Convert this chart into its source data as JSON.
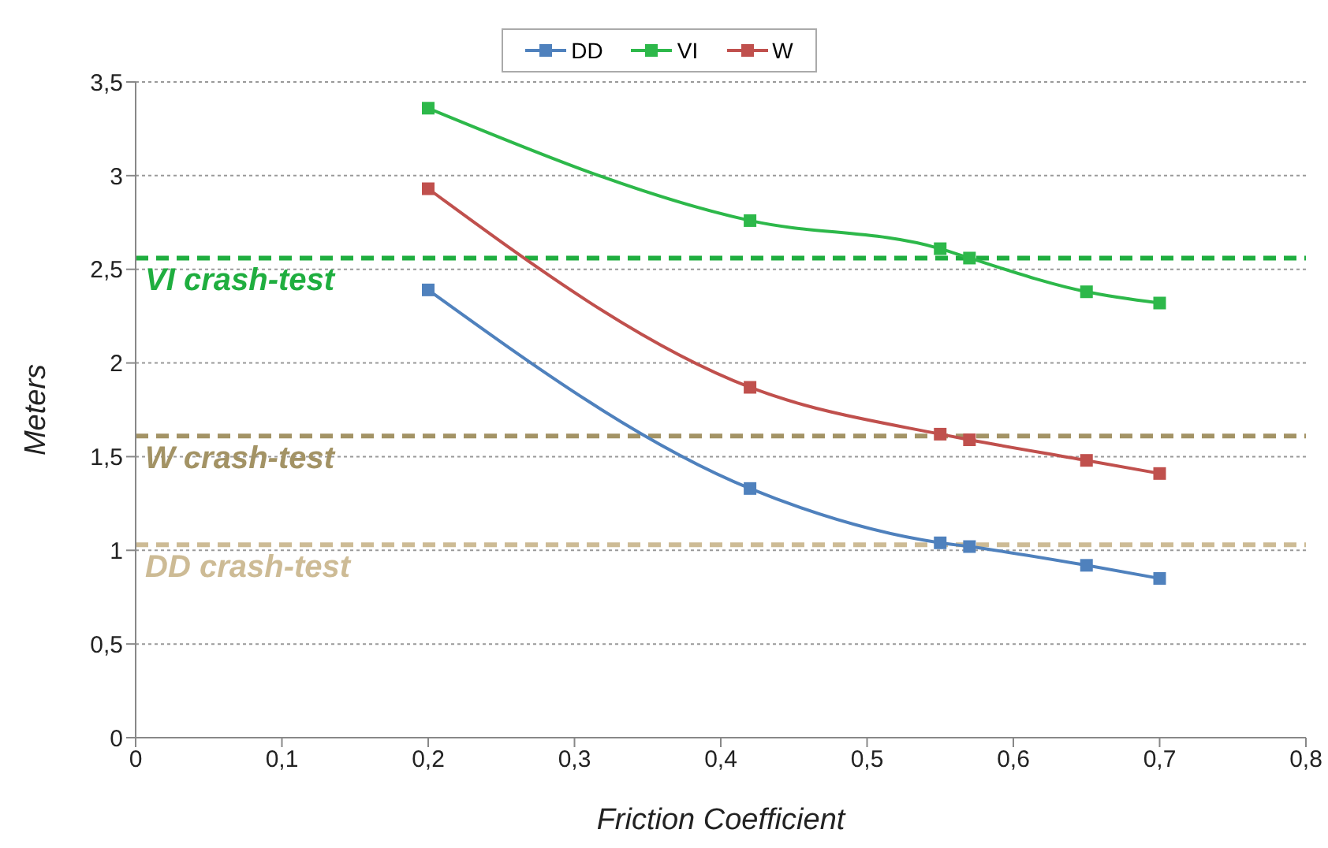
{
  "chart_data": {
    "type": "line",
    "xlabel": "Friction Coefficient",
    "ylabel": "Meters",
    "x": [
      0.2,
      0.42,
      0.55,
      0.57,
      0.65,
      0.7
    ],
    "series": [
      {
        "name": "DD",
        "color": "#4f81bd",
        "values": [
          2.39,
          1.33,
          1.04,
          1.02,
          0.92,
          0.85
        ]
      },
      {
        "name": "W",
        "color": "#c0504d",
        "values": [
          2.93,
          1.87,
          1.62,
          1.59,
          1.48,
          1.41
        ]
      },
      {
        "name": "VI",
        "color": "#2db84a",
        "values": [
          3.36,
          2.76,
          2.61,
          2.56,
          2.38,
          2.32
        ]
      }
    ],
    "xlim": [
      0,
      0.8
    ],
    "xticks": [
      0,
      {
        "value": 0.1,
        "label": "0,1"
      },
      {
        "value": 0.2,
        "label": "0,2"
      },
      {
        "value": 0.3,
        "label": "0,3"
      },
      {
        "value": 0.4,
        "label": "0,4"
      },
      {
        "value": 0.5,
        "label": "0,5"
      },
      {
        "value": 0.6,
        "label": "0,6"
      },
      {
        "value": 0.7,
        "label": "0,7"
      },
      {
        "value": 0.8,
        "label": "0,8"
      }
    ],
    "ylim": [
      0,
      3.5
    ],
    "yticks": [
      0,
      {
        "value": 0.5,
        "label": "0,5"
      },
      1,
      {
        "value": 1.5,
        "label": "1,5"
      },
      2,
      {
        "value": 2.5,
        "label": "2,5"
      },
      3,
      {
        "value": 3.5,
        "label": "3,5"
      }
    ],
    "ref_lines": [
      {
        "axis": "y",
        "value": 2.56,
        "label": "VI crash-test",
        "color": "#1fae3f",
        "line_style": "dashed"
      },
      {
        "axis": "y",
        "value": 1.61,
        "label": "W crash-test",
        "color": "#a39365",
        "line_style": "dashed"
      },
      {
        "axis": "y",
        "value": 1.03,
        "label": "DD crash-test",
        "color": "#cdbb95",
        "line_style": "dashed"
      }
    ],
    "grid": "y",
    "legend": "top",
    "marker": "square",
    "line_style": "solid"
  }
}
